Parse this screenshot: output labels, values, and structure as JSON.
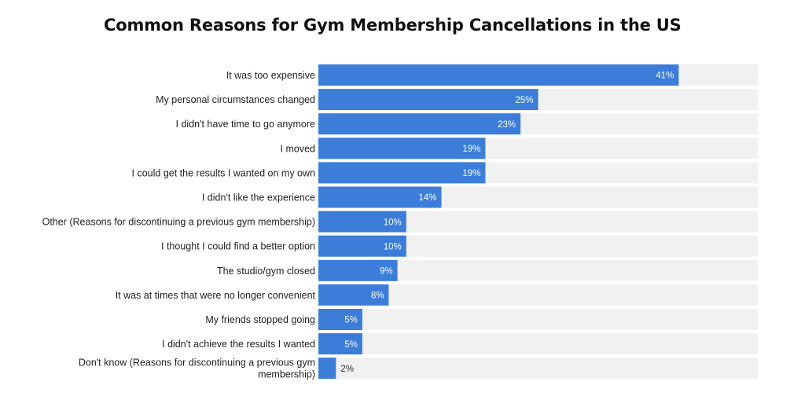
{
  "chart_data": {
    "type": "bar",
    "orientation": "horizontal",
    "title": "Common Reasons for Gym Membership Cancellations in the US",
    "xlabel": "",
    "ylabel": "",
    "xlim": [
      0,
      50
    ],
    "grid": false,
    "value_suffix": "%",
    "colors": {
      "bar": "#3b7dd8",
      "track": "#f1f1f1",
      "label_inside": "#ffffff",
      "label_outside": "#333333"
    },
    "categories": [
      [
        "It was too expensive"
      ],
      [
        "My personal circumstances changed"
      ],
      [
        "I didn't have time to go anymore"
      ],
      [
        "I moved"
      ],
      [
        "I could get the results I wanted on my own"
      ],
      [
        "I didn't like the experience"
      ],
      [
        "Other (Reasons for discontinuing a previous gym membership)"
      ],
      [
        "I thought I could find a better option"
      ],
      [
        "The studio/gym closed"
      ],
      [
        "It was at times that were no longer convenient"
      ],
      [
        "My friends stopped going"
      ],
      [
        "I didn't achieve the results I wanted"
      ],
      [
        "Don't know (Reasons for discontinuing a previous gym",
        "membership)"
      ]
    ],
    "values": [
      41,
      25,
      23,
      19,
      19,
      14,
      10,
      10,
      9,
      8,
      5,
      5,
      2
    ],
    "value_labels": [
      "41%",
      "25%",
      "23%",
      "19%",
      "19%",
      "14%",
      "10%",
      "10%",
      "9%",
      "8%",
      "5%",
      "5%",
      "2%"
    ]
  }
}
